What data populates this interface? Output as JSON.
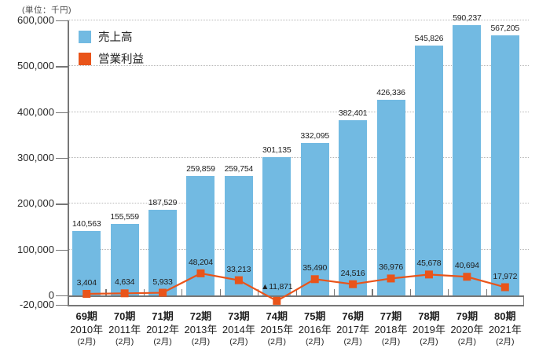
{
  "chart_data": {
    "type": "combo-bar-line",
    "unit_label": "(単位：千円)",
    "categories": [
      {
        "period": "69期",
        "year": "2010年",
        "month": "(2月)"
      },
      {
        "period": "70期",
        "year": "2011年",
        "month": "(2月)"
      },
      {
        "period": "71期",
        "year": "2012年",
        "month": "(2月)"
      },
      {
        "period": "72期",
        "year": "2013年",
        "month": "(2月)"
      },
      {
        "period": "73期",
        "year": "2014年",
        "month": "(2月)"
      },
      {
        "period": "74期",
        "year": "2015年",
        "month": "(2月)"
      },
      {
        "period": "75期",
        "year": "2016年",
        "month": "(2月)"
      },
      {
        "period": "76期",
        "year": "2017年",
        "month": "(2月)"
      },
      {
        "period": "77期",
        "year": "2018年",
        "month": "(2月)"
      },
      {
        "period": "78期",
        "year": "2019年",
        "month": "(2月)"
      },
      {
        "period": "79期",
        "year": "2020年",
        "month": "(2月)"
      },
      {
        "period": "80期",
        "year": "2021年",
        "month": "(2月)"
      }
    ],
    "series": [
      {
        "name": "売上高",
        "type": "bar",
        "color": "#72BAE2",
        "values": [
          140563,
          155559,
          187529,
          259859,
          259754,
          301135,
          332095,
          382401,
          426336,
          545826,
          590237,
          567205
        ],
        "labels": [
          "140,563",
          "155,559",
          "187,529",
          "259,859",
          "259,754",
          "301,135",
          "332,095",
          "382,401",
          "426,336",
          "545,826",
          "590,237",
          "567,205"
        ]
      },
      {
        "name": "営業利益",
        "type": "line",
        "color": "#E9541A",
        "values": [
          3404,
          4634,
          5933,
          48204,
          33213,
          -11871,
          35490,
          24516,
          36976,
          45678,
          40694,
          17972
        ],
        "labels": [
          "3,404",
          "4,634",
          "5,933",
          "48,204",
          "33,213",
          "▲11,871",
          "35,490",
          "24,516",
          "36,976",
          "45,678",
          "40,694",
          "17,972"
        ]
      }
    ],
    "y_axis": {
      "min": -20000,
      "max": 600000,
      "ticks": [
        {
          "value": 600000,
          "label": "600,000"
        },
        {
          "value": 500000,
          "label": "500,000"
        },
        {
          "value": 400000,
          "label": "400,000"
        },
        {
          "value": 300000,
          "label": "300,000"
        },
        {
          "value": 200000,
          "label": "200,000"
        },
        {
          "value": 100000,
          "label": "100,000"
        },
        {
          "value": 0,
          "label": "0"
        },
        {
          "value": -20000,
          "label": "-20,000"
        }
      ]
    },
    "grid": "dotted-horizontal",
    "legend_position": "top-left-inside"
  }
}
